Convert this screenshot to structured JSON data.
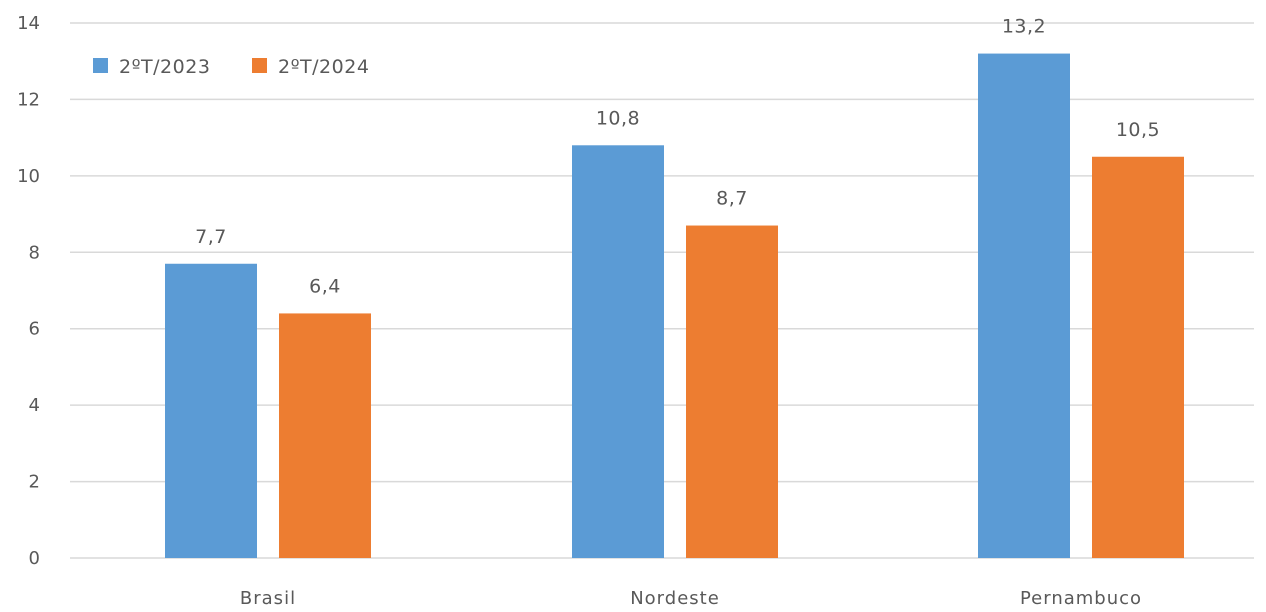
{
  "chart_data": {
    "type": "bar",
    "categories": [
      "Brasil",
      "Nordeste",
      "Pernambuco"
    ],
    "series": [
      {
        "name": "2ºT/2023",
        "values": [
          7.7,
          10.8,
          13.2
        ],
        "labels": [
          "7,7",
          "10,8",
          "13,2"
        ],
        "color": "#5B9BD5"
      },
      {
        "name": "2ºT/2024",
        "values": [
          6.4,
          8.7,
          10.5
        ],
        "labels": [
          "6,4",
          "8,7",
          "10,5"
        ],
        "color": "#ED7D31"
      }
    ],
    "ylim": [
      0,
      14
    ],
    "yticks": [
      0,
      2,
      4,
      6,
      8,
      10,
      12,
      14
    ],
    "grid": true,
    "legend_position": "top-left",
    "gridline_color": "#D9D9D9",
    "text_color": "#595959"
  }
}
